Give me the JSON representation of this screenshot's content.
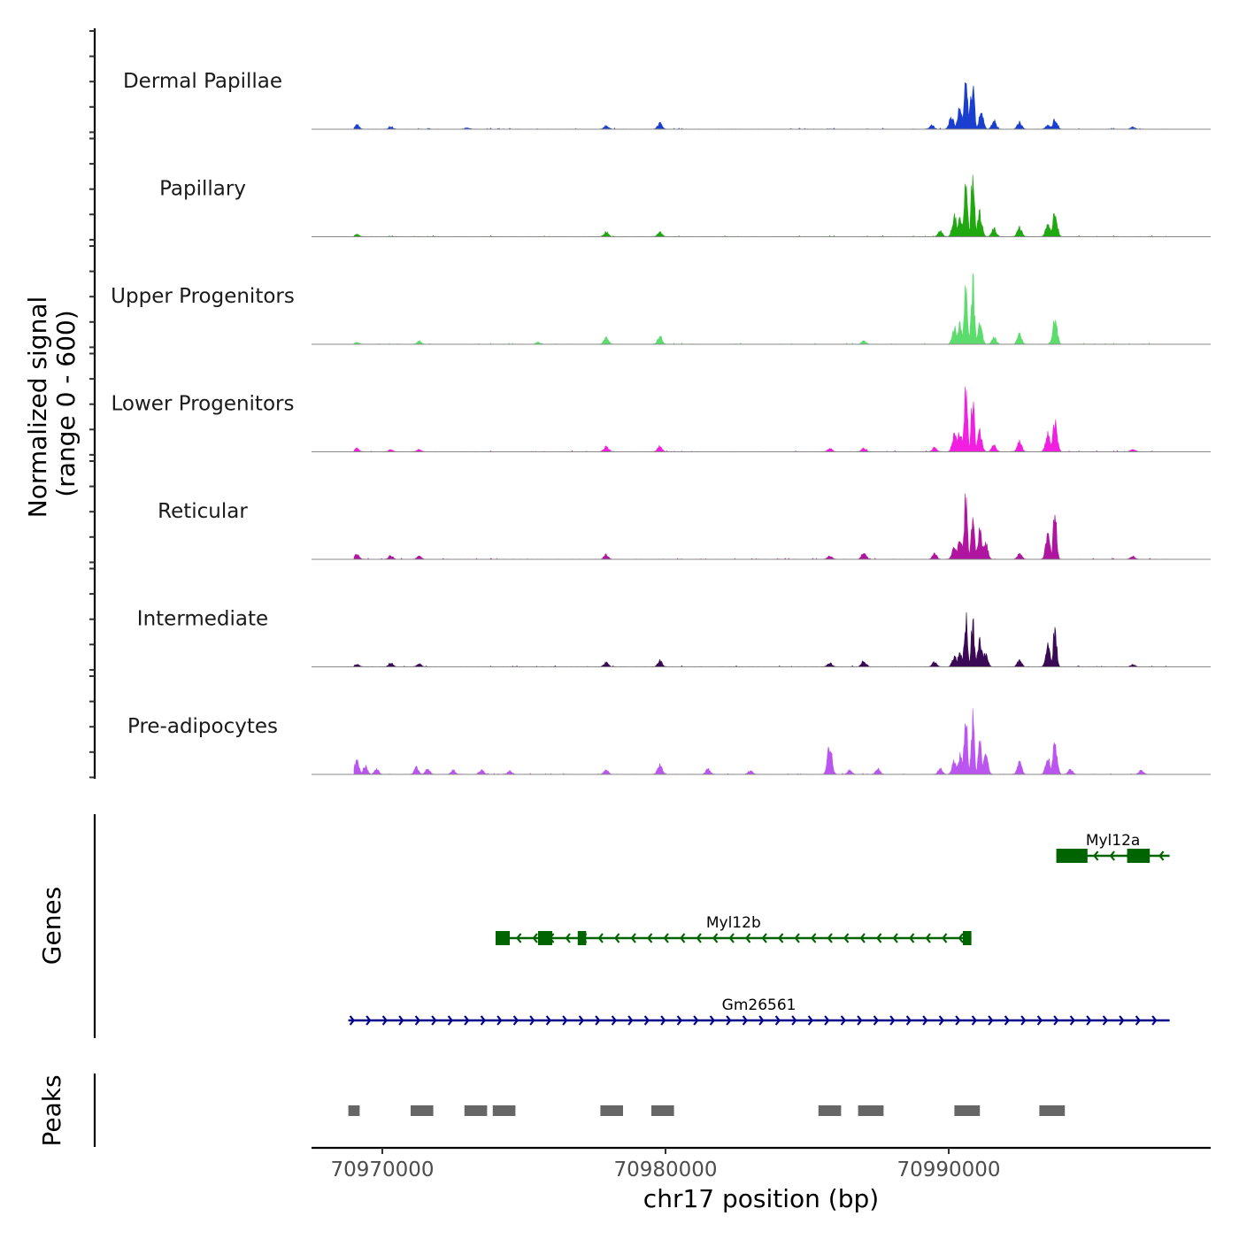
{
  "chart_data": {
    "type": "area",
    "title": "",
    "ylabel_line1": "Normalized signal",
    "ylabel_line2": "(range 0 - 600)",
    "y_range": [
      0,
      600
    ],
    "xlabel": "chr17 position (bp)",
    "xlim": [
      70967500,
      70999250
    ],
    "x_ticks": [
      70970000,
      70980000,
      70990000
    ],
    "x_tick_labels": [
      "70970000",
      "70980000",
      "70990000"
    ],
    "signal_start": 70969000,
    "signal_end": 70997800,
    "tracks": [
      {
        "name": "Dermal Papillae",
        "color": "#1a3fcf",
        "peaks": [
          [
            70969100,
            0.07
          ],
          [
            70970300,
            0.03
          ],
          [
            70973000,
            0.02
          ],
          [
            70977900,
            0.05
          ],
          [
            70979800,
            0.09
          ],
          [
            70989400,
            0.06
          ],
          [
            70990100,
            0.2
          ],
          [
            70990400,
            0.37
          ],
          [
            70990600,
            1.0
          ],
          [
            70990800,
            0.45
          ],
          [
            70990850,
            0.7
          ],
          [
            70991150,
            0.25
          ],
          [
            70991600,
            0.12
          ],
          [
            70992500,
            0.1
          ],
          [
            70993500,
            0.06
          ],
          [
            70993750,
            0.14
          ],
          [
            70996500,
            0.03
          ]
        ]
      },
      {
        "name": "Papillary",
        "color": "#1fa80f",
        "peaks": [
          [
            70969100,
            0.04
          ],
          [
            70977900,
            0.07
          ],
          [
            70979800,
            0.07
          ],
          [
            70989700,
            0.08
          ],
          [
            70990200,
            0.3
          ],
          [
            70990400,
            0.3
          ],
          [
            70990600,
            1.0
          ],
          [
            70990850,
            0.95
          ],
          [
            70991100,
            0.35
          ],
          [
            70991600,
            0.12
          ],
          [
            70992500,
            0.14
          ],
          [
            70993500,
            0.2
          ],
          [
            70993750,
            0.35
          ]
        ]
      },
      {
        "name": "Upper Progenitors",
        "color": "#5ddc6e",
        "peaks": [
          [
            70969100,
            0.03
          ],
          [
            70971300,
            0.05
          ],
          [
            70975500,
            0.03
          ],
          [
            70977900,
            0.1
          ],
          [
            70979800,
            0.12
          ],
          [
            70987000,
            0.05
          ],
          [
            70990200,
            0.25
          ],
          [
            70990400,
            0.3
          ],
          [
            70990600,
            1.0
          ],
          [
            70990850,
            0.95
          ],
          [
            70991100,
            0.3
          ],
          [
            70991600,
            0.1
          ],
          [
            70992500,
            0.15
          ],
          [
            70993750,
            0.36
          ]
        ]
      },
      {
        "name": "Lower Progenitors",
        "color": "#f21fe0",
        "peaks": [
          [
            70969100,
            0.05
          ],
          [
            70970300,
            0.03
          ],
          [
            70971300,
            0.03
          ],
          [
            70977900,
            0.08
          ],
          [
            70979800,
            0.08
          ],
          [
            70985800,
            0.05
          ],
          [
            70987000,
            0.05
          ],
          [
            70989500,
            0.06
          ],
          [
            70990200,
            0.25
          ],
          [
            70990400,
            0.3
          ],
          [
            70990600,
            1.0
          ],
          [
            70990850,
            0.82
          ],
          [
            70991100,
            0.3
          ],
          [
            70991600,
            0.1
          ],
          [
            70992500,
            0.16
          ],
          [
            70993500,
            0.3
          ],
          [
            70993750,
            0.42
          ],
          [
            70996500,
            0.04
          ]
        ]
      },
      {
        "name": "Reticular",
        "color": "#b0159f",
        "peaks": [
          [
            70969100,
            0.08
          ],
          [
            70970300,
            0.05
          ],
          [
            70971300,
            0.05
          ],
          [
            70977900,
            0.07
          ],
          [
            70985800,
            0.05
          ],
          [
            70987000,
            0.1
          ],
          [
            70989500,
            0.08
          ],
          [
            70990200,
            0.2
          ],
          [
            70990400,
            0.3
          ],
          [
            70990600,
            0.92
          ],
          [
            70990850,
            0.72
          ],
          [
            70991100,
            0.45
          ],
          [
            70991300,
            0.25
          ],
          [
            70992500,
            0.08
          ],
          [
            70993500,
            0.35
          ],
          [
            70993750,
            0.74
          ],
          [
            70996500,
            0.05
          ]
        ]
      },
      {
        "name": "Intermediate",
        "color": "#3a0a55",
        "peaks": [
          [
            70969100,
            0.04
          ],
          [
            70970300,
            0.06
          ],
          [
            70971300,
            0.05
          ],
          [
            70977900,
            0.07
          ],
          [
            70979800,
            0.09
          ],
          [
            70985800,
            0.06
          ],
          [
            70987000,
            0.09
          ],
          [
            70989500,
            0.07
          ],
          [
            70990200,
            0.15
          ],
          [
            70990400,
            0.2
          ],
          [
            70990600,
            0.75
          ],
          [
            70990850,
            0.68
          ],
          [
            70991100,
            0.4
          ],
          [
            70991300,
            0.2
          ],
          [
            70992500,
            0.1
          ],
          [
            70993500,
            0.3
          ],
          [
            70993750,
            0.63
          ],
          [
            70996500,
            0.03
          ]
        ]
      },
      {
        "name": "Pre-adipocytes",
        "color": "#bb55f0",
        "peaks": [
          [
            70969100,
            0.2
          ],
          [
            70969400,
            0.12
          ],
          [
            70969800,
            0.08
          ],
          [
            70971200,
            0.1
          ],
          [
            70971600,
            0.09
          ],
          [
            70972500,
            0.06
          ],
          [
            70973500,
            0.07
          ],
          [
            70974500,
            0.05
          ],
          [
            70977900,
            0.07
          ],
          [
            70979800,
            0.15
          ],
          [
            70981500,
            0.08
          ],
          [
            70983000,
            0.06
          ],
          [
            70985800,
            0.45
          ],
          [
            70986500,
            0.06
          ],
          [
            70987500,
            0.08
          ],
          [
            70989700,
            0.08
          ],
          [
            70990200,
            0.2
          ],
          [
            70990400,
            0.28
          ],
          [
            70990600,
            1.0
          ],
          [
            70990850,
            0.84
          ],
          [
            70991100,
            0.52
          ],
          [
            70991300,
            0.35
          ],
          [
            70992500,
            0.18
          ],
          [
            70993500,
            0.25
          ],
          [
            70993750,
            0.44
          ],
          [
            70994300,
            0.08
          ],
          [
            70996800,
            0.06
          ]
        ]
      }
    ],
    "genes_label": "Genes",
    "genes": [
      {
        "name": "Myl12a",
        "strand": "-",
        "color": "#006400",
        "start": 70993800,
        "end": 70997800,
        "exons": [
          [
            70993800,
            70994900
          ],
          [
            70996300,
            70997100
          ]
        ]
      },
      {
        "name": "Myl12b",
        "strand": "-",
        "color": "#006400",
        "start": 70974000,
        "end": 70990800,
        "exons": [
          [
            70974000,
            70974500
          ],
          [
            70975500,
            70976000
          ],
          [
            70976900,
            70977200
          ],
          [
            70990500,
            70990800
          ]
        ]
      },
      {
        "name": "Gm26561",
        "strand": "+",
        "color": "#00008b",
        "start": 70968800,
        "end": 70997800,
        "exons": []
      }
    ],
    "peaks_label": "Peaks",
    "peak_color": "#666666",
    "peak_regions": [
      [
        70968800,
        70969200
      ],
      [
        70971000,
        70971800
      ],
      [
        70972900,
        70973700
      ],
      [
        70973900,
        70974700
      ],
      [
        70977700,
        70978500
      ],
      [
        70979500,
        70980300
      ],
      [
        70985400,
        70986200
      ],
      [
        70986800,
        70987700
      ],
      [
        70990200,
        70991100
      ],
      [
        70993200,
        70994100
      ]
    ]
  }
}
